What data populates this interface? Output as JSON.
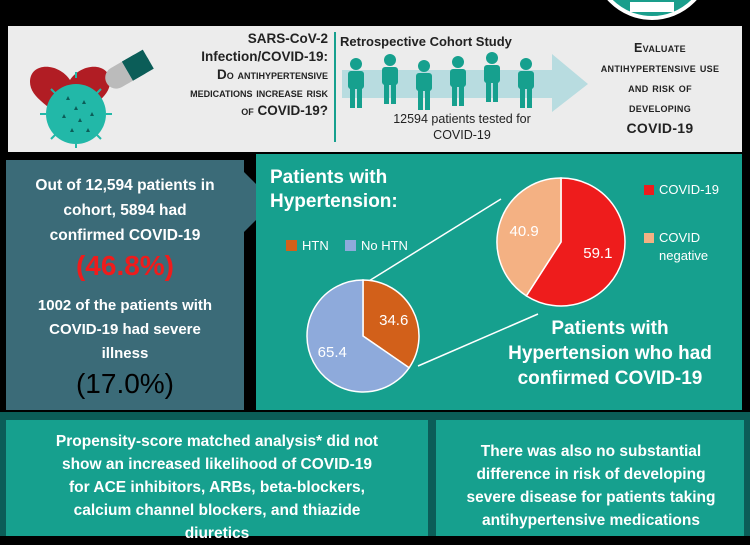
{
  "header": {
    "question_line1": "SARS-CoV-2",
    "question_line2": "Infection/COVID-19:",
    "question_line3": "Do antihypertensive",
    "question_line4": "medications increase risk",
    "question_line5": "of COVID-19?",
    "study_title": "Retrospective Cohort Study",
    "patients_line1": "12594 patients tested for",
    "patients_line2": "COVID-19",
    "eval_line1": "Evaluate",
    "eval_line2": "antihypertensive use",
    "eval_line3": "and risk of",
    "eval_line4": "developing",
    "eval_line5": "COVID-19"
  },
  "left_panel": {
    "line1": "Out of 12,594 patients in",
    "line2": "cohort, 5894 had",
    "line3": "confirmed COVID-19",
    "pct1": "(46.8%)",
    "line4": "1002 of the patients with",
    "line5": "COVID-19 had severe",
    "line6": "illness",
    "pct2": "(17.0%)"
  },
  "right_panel": {
    "title1_line1": "Patients with",
    "title1_line2": "Hypertension:",
    "title2_line1": "Patients with",
    "title2_line2": "Hypertension who had",
    "title2_line3": "confirmed COVID-19"
  },
  "chart_data": [
    {
      "type": "pie",
      "categories": [
        "HTN",
        "No HTN"
      ],
      "values": [
        34.6,
        65.4
      ],
      "labels": [
        "34.6",
        "65.4"
      ],
      "colors": [
        "#d2601a",
        "#8eaadb"
      ],
      "legend": "top-left"
    },
    {
      "type": "pie",
      "categories": [
        "COVID-19",
        "COVID negative"
      ],
      "legend_line2": "negative",
      "legend_line1": "COVID",
      "values": [
        59.1,
        40.9
      ],
      "labels": [
        "59.1",
        "40.9"
      ],
      "colors": [
        "#ee1c1c",
        "#f4b183"
      ],
      "legend": "right"
    }
  ],
  "bottom": {
    "left_line1": "Propensity-score matched analysis* did not",
    "left_line2": "show an increased likelihood of COVID-19",
    "left_line3": "for ACE inhibitors, ARBs, beta-blockers,",
    "left_line4": "calcium channel blockers, and thiazide",
    "left_line5": "diuretics",
    "right_line1": "There was also no substantial",
    "right_line2": "difference in risk of developing",
    "right_line3": "severe disease for patients taking",
    "right_line4": "antihypertensive medications"
  },
  "colors": {
    "teal": "#16a08e",
    "slate": "#3b6b78",
    "dark_teal": "#0b5d58",
    "red": "#ee1c1c"
  }
}
